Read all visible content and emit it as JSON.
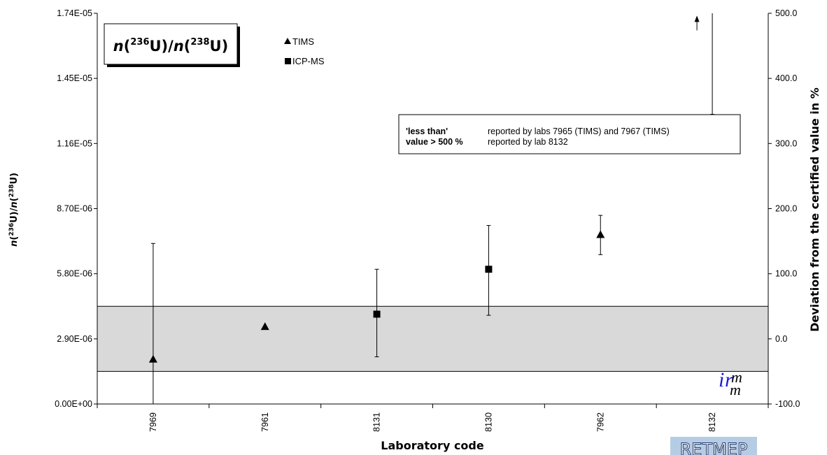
{
  "chart_data": {
    "type": "scatter",
    "xlabel": "Laboratory code",
    "categories": [
      "7969",
      "7961",
      "8131",
      "8130",
      "7962",
      "8132"
    ],
    "y_axis_left": {
      "ylim": [
        0,
        1.74e-05
      ],
      "ticks": [
        "0.00E+00",
        "2.90E-06",
        "5.80E-06",
        "8.70E-06",
        "1.16E-05",
        "1.45E-05",
        "1.74E-05"
      ]
    },
    "y_axis_right": {
      "label": "Deviation from the certified value in %",
      "ylim": [
        -100,
        500
      ],
      "ticks": [
        "-100.0",
        "0.0",
        "100.0",
        "200.0",
        "300.0",
        "400.0",
        "500.0"
      ]
    },
    "title_box": {
      "n1": "n",
      "open1": "(",
      "sup1": "236",
      "u1": "U)/",
      "n2": "n",
      "open2": "(",
      "sup2": "238",
      "u2": "U)"
    },
    "legend": [
      {
        "name": "TIMS",
        "marker": "triangle"
      },
      {
        "name": "ICP-MS",
        "marker": "square"
      }
    ],
    "series": [
      {
        "category": "7969",
        "method": "TIMS",
        "y": 2e-06,
        "err_low": 0.0,
        "err_high": 7.15e-06
      },
      {
        "category": "7961",
        "method": "TIMS",
        "y": 3.45e-06
      },
      {
        "category": "8131",
        "method": "ICP-MS",
        "y": 4e-06,
        "err_low": 2.1e-06,
        "err_high": 6e-06
      },
      {
        "category": "8130",
        "method": "ICP-MS",
        "y": 6e-06,
        "err_low": 3.95e-06,
        "err_high": 7.95e-06
      },
      {
        "category": "7962",
        "method": "TIMS",
        "y": 7.55e-06,
        "err_low": 6.65e-06,
        "err_high": 8.4e-06
      },
      {
        "category": "8132",
        "method": "TIMS",
        "y": 1.72e-05,
        "err_low": 1.29e-05,
        "err_high": 1.74e-05,
        "arrow": "off-scale"
      }
    ],
    "certified_band": {
      "lower": 1.45e-06,
      "upper": 4.35e-06
    },
    "note": {
      "line1_key": "'less than'",
      "line1_text": "reported by labs 7965 (TIMS) and 7967 (TIMS)",
      "line2_key": "value > 500 %",
      "line2_text": "reported by lab 8132"
    },
    "colors": {
      "band": "#d9d9d9",
      "marker": "#000000",
      "logo_blue": "#1a1adc"
    }
  },
  "logos": {
    "irmm": "irmm",
    "retmep": "RETMEP"
  }
}
